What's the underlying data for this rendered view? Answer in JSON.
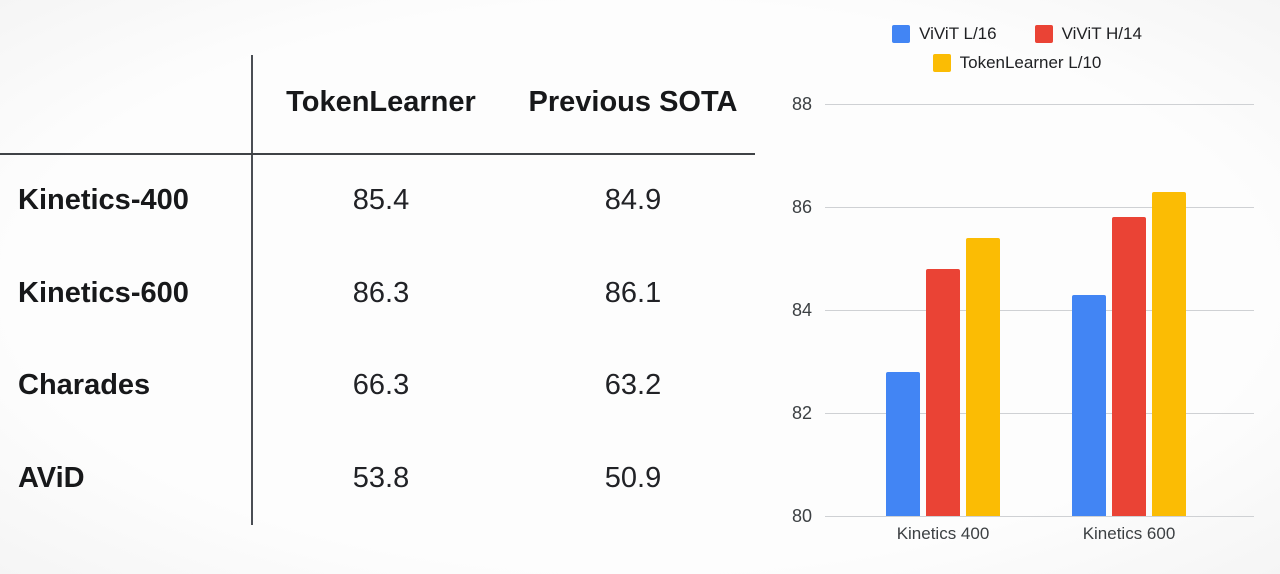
{
  "table": {
    "columns": [
      "TokenLearner",
      "Previous SOTA"
    ],
    "rows": [
      {
        "label": "Kinetics-400",
        "tokenlearner": "85.4",
        "previous_sota": "84.9"
      },
      {
        "label": "Kinetics-600",
        "tokenlearner": "86.3",
        "previous_sota": "86.1"
      },
      {
        "label": "Charades",
        "tokenlearner": "66.3",
        "previous_sota": "63.2"
      },
      {
        "label": "AViD",
        "tokenlearner": "53.8",
        "previous_sota": "50.9"
      }
    ]
  },
  "chart_data": {
    "type": "bar",
    "title": "",
    "xlabel": "",
    "ylabel": "",
    "categories": [
      "Kinetics 400",
      "Kinetics 600"
    ],
    "series": [
      {
        "name": "ViViT L/16",
        "color": "#4285F4",
        "values": [
          82.8,
          84.3
        ]
      },
      {
        "name": "ViViT H/14",
        "color": "#EA4335",
        "values": [
          84.8,
          85.8
        ]
      },
      {
        "name": "TokenLearner L/10",
        "color": "#FBBC04",
        "values": [
          85.4,
          86.3
        ]
      }
    ],
    "ylim": [
      80,
      88
    ],
    "yticks": [
      80,
      82,
      84,
      86,
      88
    ],
    "grid": true,
    "legend_position": "top"
  }
}
